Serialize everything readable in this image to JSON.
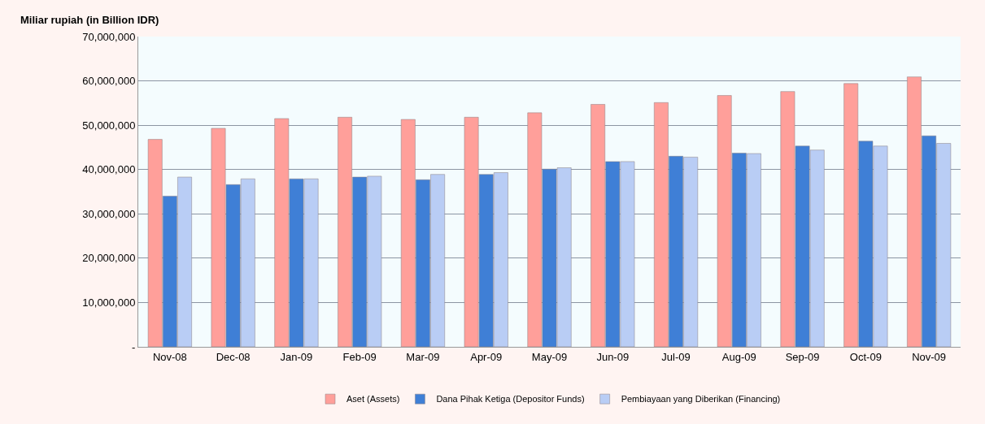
{
  "chart_data": {
    "type": "bar",
    "ylabel": "Miliar rupiah (in Billion IDR)",
    "categories": [
      "Nov-08",
      "Dec-08",
      "Jan-09",
      "Feb-09",
      "Mar-09",
      "Apr-09",
      "May-09",
      "Jun-09",
      "Jul-09",
      "Aug-09",
      "Sep-09",
      "Oct-09",
      "Nov-09"
    ],
    "series": [
      {
        "name": "Aset (Assets)",
        "color": "#ff9f9a",
        "values": [
          46800000,
          49300000,
          51500000,
          51800000,
          51300000,
          51800000,
          52800000,
          54700000,
          55100000,
          56700000,
          57600000,
          59400000,
          60900000
        ]
      },
      {
        "name": "Dana Pihak Ketiga (Depositor Funds)",
        "color": "#3f7fd6",
        "values": [
          34000000,
          36600000,
          37900000,
          38300000,
          37700000,
          38900000,
          40100000,
          41800000,
          43000000,
          43700000,
          45300000,
          46400000,
          47600000
        ]
      },
      {
        "name": "Pembiayaan yang Diberikan (Financing)",
        "color": "#b9cdf5",
        "values": [
          38300000,
          37900000,
          37900000,
          38500000,
          38900000,
          39300000,
          40400000,
          41800000,
          42800000,
          43600000,
          44400000,
          45300000,
          45900000
        ]
      }
    ],
    "ylim": [
      0,
      70000000
    ],
    "yticks": [
      {
        "value": 0,
        "label": "-"
      },
      {
        "value": 10000000,
        "label": "10,000,000"
      },
      {
        "value": 20000000,
        "label": "20,000,000"
      },
      {
        "value": 30000000,
        "label": "30,000,000"
      },
      {
        "value": 40000000,
        "label": "40,000,000"
      },
      {
        "value": 50000000,
        "label": "50,000,000"
      },
      {
        "value": 60000000,
        "label": "60,000,000"
      },
      {
        "value": 70000000,
        "label": "70,000,000"
      }
    ],
    "grid": "y",
    "legend": "bottom"
  }
}
